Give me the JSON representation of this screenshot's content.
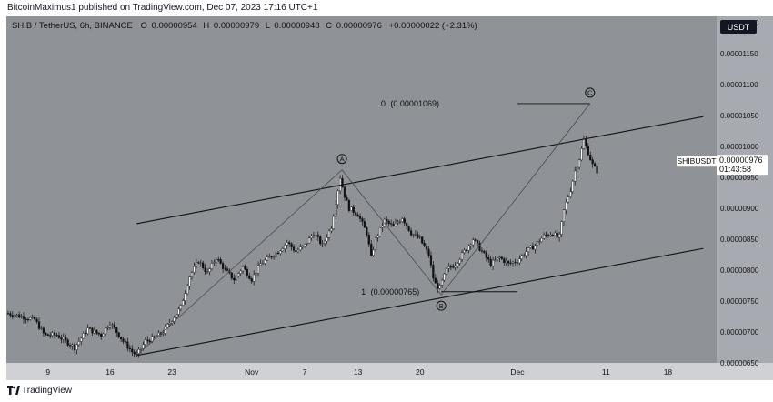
{
  "header": {
    "published_by": "BitcoinMaximus1 published on TradingView.com, Dec 07, 2023 17:16 UTC+1"
  },
  "footer": {
    "brand": "TradingView"
  },
  "colors": {
    "background": "#8f9297",
    "price_axis_bg": "#a7aab0",
    "time_axis_bg": "#cfd1d4",
    "line": "#111111",
    "candle": "#111111",
    "currency_tag_bg": "#131722"
  },
  "icons": {
    "logo": "tradingview-logo-icon",
    "wave_label": "circled-letter-icon"
  },
  "chart_data": {
    "type": "candlestick",
    "symbol_line": {
      "title": "SHIB / TetherUS, 6h, BINANCE",
      "o_label": "O",
      "o_value": "0.00000954",
      "h_label": "H",
      "h_value": "0.00000979",
      "l_label": "L",
      "l_value": "0.00000948",
      "c_label": "C",
      "c_value": "0.00000976",
      "change": "+0.00000022 (+2.31%)"
    },
    "currency": "USDT",
    "ylim": [
      6.5e-06,
      1.21e-05
    ],
    "y_ticks": [
      "0.00000650",
      "0.00000700",
      "0.00000750",
      "0.00000800",
      "0.00000850",
      "0.00000900",
      "0.00000950",
      "0.00001000",
      "0.00001050",
      "0.00001100",
      "0.00001150",
      "0.00001200"
    ],
    "x_ticks": [
      {
        "day": 9,
        "label": "9"
      },
      {
        "day": 16,
        "label": "16"
      },
      {
        "day": 23,
        "label": "23"
      },
      {
        "day": 32,
        "label": "Nov"
      },
      {
        "day": 38,
        "label": "7"
      },
      {
        "day": 44,
        "label": "13"
      },
      {
        "day": 51,
        "label": "20"
      },
      {
        "day": 62,
        "label": "Dec"
      },
      {
        "day": 72,
        "label": "11"
      },
      {
        "day": 79,
        "label": "18"
      }
    ],
    "xlim": [
      4.3,
      84.5
    ],
    "price_points": [
      {
        "day": 4.5,
        "p": 7.3
      },
      {
        "day": 7.5,
        "p": 7.2
      },
      {
        "day": 8.6,
        "p": 6.95
      },
      {
        "day": 10,
        "p": 6.95
      },
      {
        "day": 12,
        "p": 6.75
      },
      {
        "day": 13.5,
        "p": 7.05
      },
      {
        "day": 15,
        "p": 6.95
      },
      {
        "day": 16,
        "p": 7.15
      },
      {
        "day": 17.5,
        "p": 6.85
      },
      {
        "day": 18.5,
        "p": 6.68
      },
      {
        "day": 19,
        "p": 6.62
      },
      {
        "day": 20,
        "p": 6.85
      },
      {
        "day": 21,
        "p": 6.9
      },
      {
        "day": 22,
        "p": 7.0
      },
      {
        "day": 24,
        "p": 7.4
      },
      {
        "day": 25,
        "p": 7.9
      },
      {
        "day": 26,
        "p": 8.15
      },
      {
        "day": 27,
        "p": 7.95
      },
      {
        "day": 28,
        "p": 8.2
      },
      {
        "day": 29,
        "p": 8.0
      },
      {
        "day": 30,
        "p": 7.85
      },
      {
        "day": 31,
        "p": 8.05
      },
      {
        "day": 32,
        "p": 7.85
      },
      {
        "day": 33,
        "p": 8.1
      },
      {
        "day": 34,
        "p": 8.2
      },
      {
        "day": 35,
        "p": 8.3
      },
      {
        "day": 36,
        "p": 8.45
      },
      {
        "day": 37,
        "p": 8.3
      },
      {
        "day": 38,
        "p": 8.4
      },
      {
        "day": 39,
        "p": 8.6
      },
      {
        "day": 40,
        "p": 8.4
      },
      {
        "day": 41,
        "p": 8.7
      },
      {
        "day": 42,
        "p": 9.5
      },
      {
        "day": 42.5,
        "p": 9.2
      },
      {
        "day": 43,
        "p": 9.0
      },
      {
        "day": 44,
        "p": 8.9
      },
      {
        "day": 45,
        "p": 8.6
      },
      {
        "day": 45.5,
        "p": 8.2
      },
      {
        "day": 46,
        "p": 8.5
      },
      {
        "day": 47,
        "p": 8.8
      },
      {
        "day": 48,
        "p": 8.7
      },
      {
        "day": 49,
        "p": 8.85
      },
      {
        "day": 50,
        "p": 8.6
      },
      {
        "day": 51,
        "p": 8.5
      },
      {
        "day": 52,
        "p": 8.25
      },
      {
        "day": 52.6,
        "p": 7.8
      },
      {
        "day": 53.2,
        "p": 7.7
      },
      {
        "day": 54,
        "p": 8.0
      },
      {
        "day": 55,
        "p": 8.1
      },
      {
        "day": 56,
        "p": 8.3
      },
      {
        "day": 57,
        "p": 8.5
      },
      {
        "day": 58,
        "p": 8.3
      },
      {
        "day": 59,
        "p": 8.1
      },
      {
        "day": 60,
        "p": 8.2
      },
      {
        "day": 61,
        "p": 8.1
      },
      {
        "day": 62,
        "p": 8.15
      },
      {
        "day": 63,
        "p": 8.3
      },
      {
        "day": 64,
        "p": 8.4
      },
      {
        "day": 65,
        "p": 8.55
      },
      {
        "day": 66,
        "p": 8.6
      },
      {
        "day": 66.7,
        "p": 8.5
      },
      {
        "day": 67.3,
        "p": 9.0
      },
      {
        "day": 68,
        "p": 9.3
      },
      {
        "day": 68.5,
        "p": 9.6
      },
      {
        "day": 69,
        "p": 9.8
      },
      {
        "day": 69.5,
        "p": 10.1
      },
      {
        "day": 70,
        "p": 9.9
      },
      {
        "day": 70.5,
        "p": 9.7
      },
      {
        "day": 71,
        "p": 9.6
      }
    ],
    "channel_upper": [
      {
        "day": 19,
        "p": 8.75
      },
      {
        "day": 83,
        "p": 10.48
      }
    ],
    "channel_lower": [
      {
        "day": 19,
        "p": 6.62
      },
      {
        "day": 83,
        "p": 8.35
      }
    ],
    "wave_path": [
      {
        "day": 19,
        "p": 6.62
      },
      {
        "day": 42.2,
        "p": 9.62
      },
      {
        "day": 53.4,
        "p": 7.6
      },
      {
        "day": 70.2,
        "p": 10.69
      }
    ],
    "fib_levels": [
      {
        "ratio_label": "0",
        "price_label": "(0.00001069)",
        "day_start": 70.2,
        "day_end": 62,
        "p": 10.69
      },
      {
        "ratio_label": "1",
        "price_label": "(0.00000765)",
        "day_start": 53.4,
        "day_end": 62,
        "p": 7.65
      }
    ],
    "wave_labels": [
      {
        "label": "A",
        "day": 42.2,
        "p": 9.62,
        "pos": "above"
      },
      {
        "label": "B",
        "day": 53.4,
        "p": 7.6,
        "pos": "below"
      },
      {
        "label": "C",
        "day": 70.2,
        "p": 10.69,
        "pos": "above"
      }
    ],
    "price_tag": {
      "symbol": "SHIBUSDT",
      "price": "0.00000976",
      "countdown": "01:43:58",
      "p": 9.76
    }
  }
}
